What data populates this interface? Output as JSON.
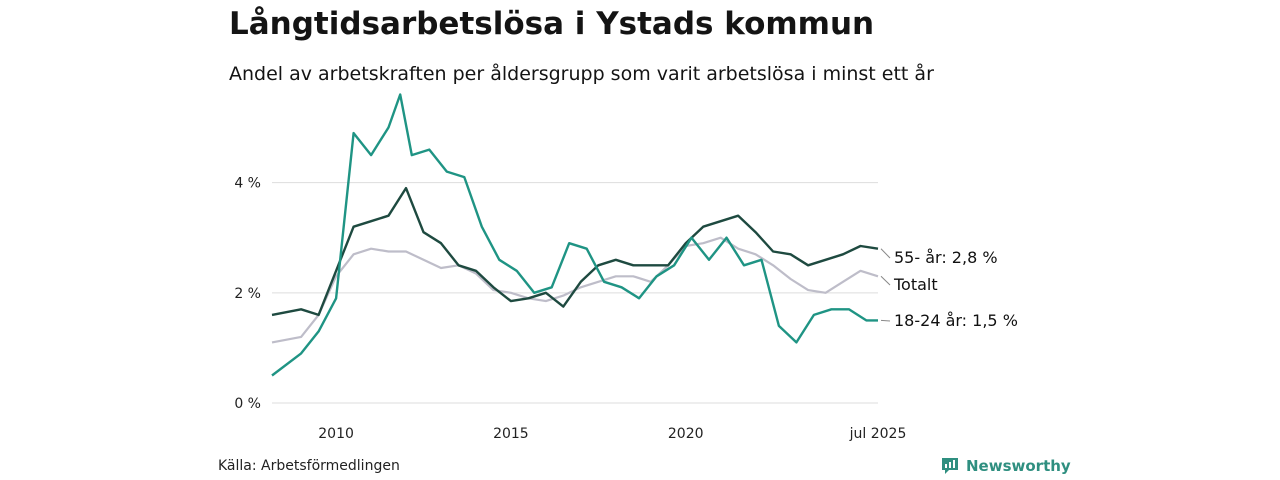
{
  "title": "Långtidsarbetslösa i Ystads kommun",
  "subtitle": "Andel av arbetskraften per åldersgrupp som varit arbetslösa i minst ett år",
  "source": "Källa: Arbetsförmedlingen",
  "brand": "Newsworthy",
  "colors": {
    "older": "#1e4a40",
    "young": "#1f9484",
    "total": "#bebdc9",
    "grid": "#dddddd",
    "brand": "#2f8f80"
  },
  "chart_data": {
    "type": "line",
    "title": "Långtidsarbetslösa i Ystads kommun",
    "subtitle": "Andel av arbetskraften per åldersgrupp som varit arbetslösa i minst ett år",
    "xlabel": "",
    "ylabel": "",
    "xlim": [
      "2008-03",
      "2025-07"
    ],
    "ylim": [
      0,
      5.5
    ],
    "y_ticks": [
      {
        "value": 0,
        "label": "0 %"
      },
      {
        "value": 2,
        "label": "2 %"
      },
      {
        "value": 4,
        "label": "4 %"
      }
    ],
    "x_ticks": [
      {
        "value": "2010-01",
        "label": "2010"
      },
      {
        "value": "2015-01",
        "label": "2015"
      },
      {
        "value": "2020-01",
        "label": "2020"
      },
      {
        "value": "2025-07",
        "label": "jul 2025"
      }
    ],
    "grid": true,
    "legend": "end-labels",
    "series": [
      {
        "name": "Totalt",
        "end_label": "Totalt",
        "color": "#bebdc9",
        "points": [
          [
            "2008-03",
            1.1
          ],
          [
            "2009-01",
            1.2
          ],
          [
            "2009-07",
            1.6
          ],
          [
            "2010-01",
            2.3
          ],
          [
            "2010-07",
            2.7
          ],
          [
            "2011-01",
            2.8
          ],
          [
            "2011-07",
            2.75
          ],
          [
            "2012-01",
            2.75
          ],
          [
            "2012-07",
            2.6
          ],
          [
            "2013-01",
            2.45
          ],
          [
            "2013-07",
            2.5
          ],
          [
            "2014-01",
            2.35
          ],
          [
            "2014-07",
            2.05
          ],
          [
            "2015-01",
            2.0
          ],
          [
            "2015-07",
            1.9
          ],
          [
            "2016-01",
            1.85
          ],
          [
            "2016-07",
            1.95
          ],
          [
            "2017-01",
            2.1
          ],
          [
            "2017-07",
            2.2
          ],
          [
            "2018-01",
            2.3
          ],
          [
            "2018-07",
            2.3
          ],
          [
            "2019-01",
            2.2
          ],
          [
            "2019-07",
            2.5
          ],
          [
            "2020-01",
            2.85
          ],
          [
            "2020-07",
            2.9
          ],
          [
            "2021-01",
            3.0
          ],
          [
            "2021-07",
            2.8
          ],
          [
            "2022-01",
            2.7
          ],
          [
            "2022-07",
            2.5
          ],
          [
            "2023-01",
            2.25
          ],
          [
            "2023-07",
            2.05
          ],
          [
            "2024-01",
            2.0
          ],
          [
            "2024-07",
            2.2
          ],
          [
            "2025-01",
            2.4
          ],
          [
            "2025-07",
            2.3
          ]
        ]
      },
      {
        "name": "55- år",
        "end_label": "55- år: 2,8 %",
        "color": "#1e4a40",
        "points": [
          [
            "2008-03",
            1.6
          ],
          [
            "2009-01",
            1.7
          ],
          [
            "2009-07",
            1.6
          ],
          [
            "2010-01",
            2.4
          ],
          [
            "2010-07",
            3.2
          ],
          [
            "2011-01",
            3.3
          ],
          [
            "2011-07",
            3.4
          ],
          [
            "2012-01",
            3.9
          ],
          [
            "2012-07",
            3.1
          ],
          [
            "2013-01",
            2.9
          ],
          [
            "2013-07",
            2.5
          ],
          [
            "2014-01",
            2.4
          ],
          [
            "2014-07",
            2.1
          ],
          [
            "2015-01",
            1.85
          ],
          [
            "2015-07",
            1.9
          ],
          [
            "2016-01",
            2.0
          ],
          [
            "2016-07",
            1.75
          ],
          [
            "2017-01",
            2.2
          ],
          [
            "2017-07",
            2.5
          ],
          [
            "2018-01",
            2.6
          ],
          [
            "2018-07",
            2.5
          ],
          [
            "2019-01",
            2.5
          ],
          [
            "2019-07",
            2.5
          ],
          [
            "2020-01",
            2.9
          ],
          [
            "2020-07",
            3.2
          ],
          [
            "2021-01",
            3.3
          ],
          [
            "2021-07",
            3.4
          ],
          [
            "2022-01",
            3.1
          ],
          [
            "2022-07",
            2.75
          ],
          [
            "2023-01",
            2.7
          ],
          [
            "2023-07",
            2.5
          ],
          [
            "2024-01",
            2.6
          ],
          [
            "2024-07",
            2.7
          ],
          [
            "2025-01",
            2.85
          ],
          [
            "2025-07",
            2.8
          ]
        ]
      },
      {
        "name": "18-24 år",
        "end_label": "18-24 år: 1,5 %",
        "color": "#1f9484",
        "points": [
          [
            "2008-03",
            0.5
          ],
          [
            "2009-01",
            0.9
          ],
          [
            "2009-07",
            1.3
          ],
          [
            "2010-01",
            1.9
          ],
          [
            "2010-07",
            4.9
          ],
          [
            "2011-01",
            4.5
          ],
          [
            "2011-07",
            5.0
          ],
          [
            "2011-11",
            5.6
          ],
          [
            "2012-03",
            4.5
          ],
          [
            "2012-09",
            4.6
          ],
          [
            "2013-03",
            4.2
          ],
          [
            "2013-09",
            4.1
          ],
          [
            "2014-03",
            3.2
          ],
          [
            "2014-09",
            2.6
          ],
          [
            "2015-03",
            2.4
          ],
          [
            "2015-09",
            2.0
          ],
          [
            "2016-03",
            2.1
          ],
          [
            "2016-09",
            2.9
          ],
          [
            "2017-03",
            2.8
          ],
          [
            "2017-09",
            2.2
          ],
          [
            "2018-03",
            2.1
          ],
          [
            "2018-09",
            1.9
          ],
          [
            "2019-03",
            2.3
          ],
          [
            "2019-09",
            2.5
          ],
          [
            "2020-03",
            3.0
          ],
          [
            "2020-09",
            2.6
          ],
          [
            "2021-03",
            3.0
          ],
          [
            "2021-09",
            2.5
          ],
          [
            "2022-03",
            2.6
          ],
          [
            "2022-09",
            1.4
          ],
          [
            "2023-03",
            1.1
          ],
          [
            "2023-09",
            1.6
          ],
          [
            "2024-03",
            1.7
          ],
          [
            "2024-09",
            1.7
          ],
          [
            "2025-03",
            1.5
          ],
          [
            "2025-07",
            1.5
          ]
        ]
      }
    ]
  }
}
